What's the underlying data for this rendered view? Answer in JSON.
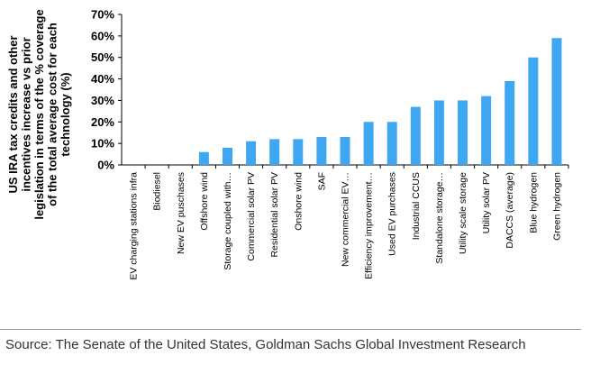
{
  "chart_data": {
    "type": "bar",
    "ylabel": [
      "US IRA tax credits and other",
      "incentives increase vs prior",
      "legislation in terms of the % coverage",
      "of the total average cost for each",
      "technology (%)"
    ],
    "ylim": [
      0,
      70
    ],
    "yticks": [
      "0%",
      "10%",
      "20%",
      "30%",
      "40%",
      "50%",
      "60%",
      "70%"
    ],
    "grid": false,
    "bar_color": "#3fa6f2",
    "categories": [
      "EV charging stations infra",
      "Biodiesel",
      "New EV puschases",
      "Offshore wind",
      "Storage coupled with…",
      "Commercial solar PV",
      "Residential solar PV",
      "Onshore wind",
      "SAF",
      "New commercial EV…",
      "Efficiency improvement…",
      "Used EV purchases",
      "Industrial CCUS",
      "Standalone storage…",
      "Utility scale storage",
      "Utility solar PV",
      "DACCS (average)",
      "Blue hydrogen",
      "Green hydrogen"
    ],
    "values": [
      0,
      0,
      0,
      6,
      8,
      11,
      12,
      12,
      13,
      13,
      20,
      20,
      27,
      30,
      30,
      32,
      39,
      50,
      59
    ]
  },
  "source": "Source: The Senate of the United States, Goldman Sachs Global Investment Research"
}
